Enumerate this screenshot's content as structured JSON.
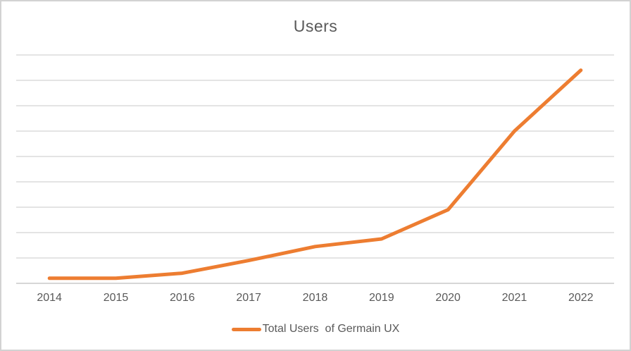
{
  "window": {
    "background_color": "#ffffff",
    "border_color": "#d2d2d2"
  },
  "chart": {
    "title_color": "#595959",
    "axis_label_color": "#595959",
    "gridline_color": "#dbdbdb",
    "axis_line_color": "#d6d6d6",
    "line_color": "#ED7D31",
    "line_width": 5
  },
  "chart_data": {
    "type": "line",
    "title": "Users",
    "categories": [
      "2014",
      "2015",
      "2016",
      "2017",
      "2018",
      "2019",
      "2020",
      "2021",
      "2022"
    ],
    "series": [
      {
        "name": "Total Users  of Germain UX",
        "values": [
          0.2,
          0.2,
          0.4,
          0.9,
          1.45,
          1.75,
          2.9,
          6.0,
          8.4
        ]
      }
    ],
    "xlabel": "",
    "ylabel": "",
    "ylim": [
      0,
      9
    ],
    "y_gridline_step": 1,
    "y_tick_labels_visible": false,
    "units": "gridline-intervals (no y-axis value labels shown)",
    "grid": true,
    "legend_position": "bottom-center"
  }
}
